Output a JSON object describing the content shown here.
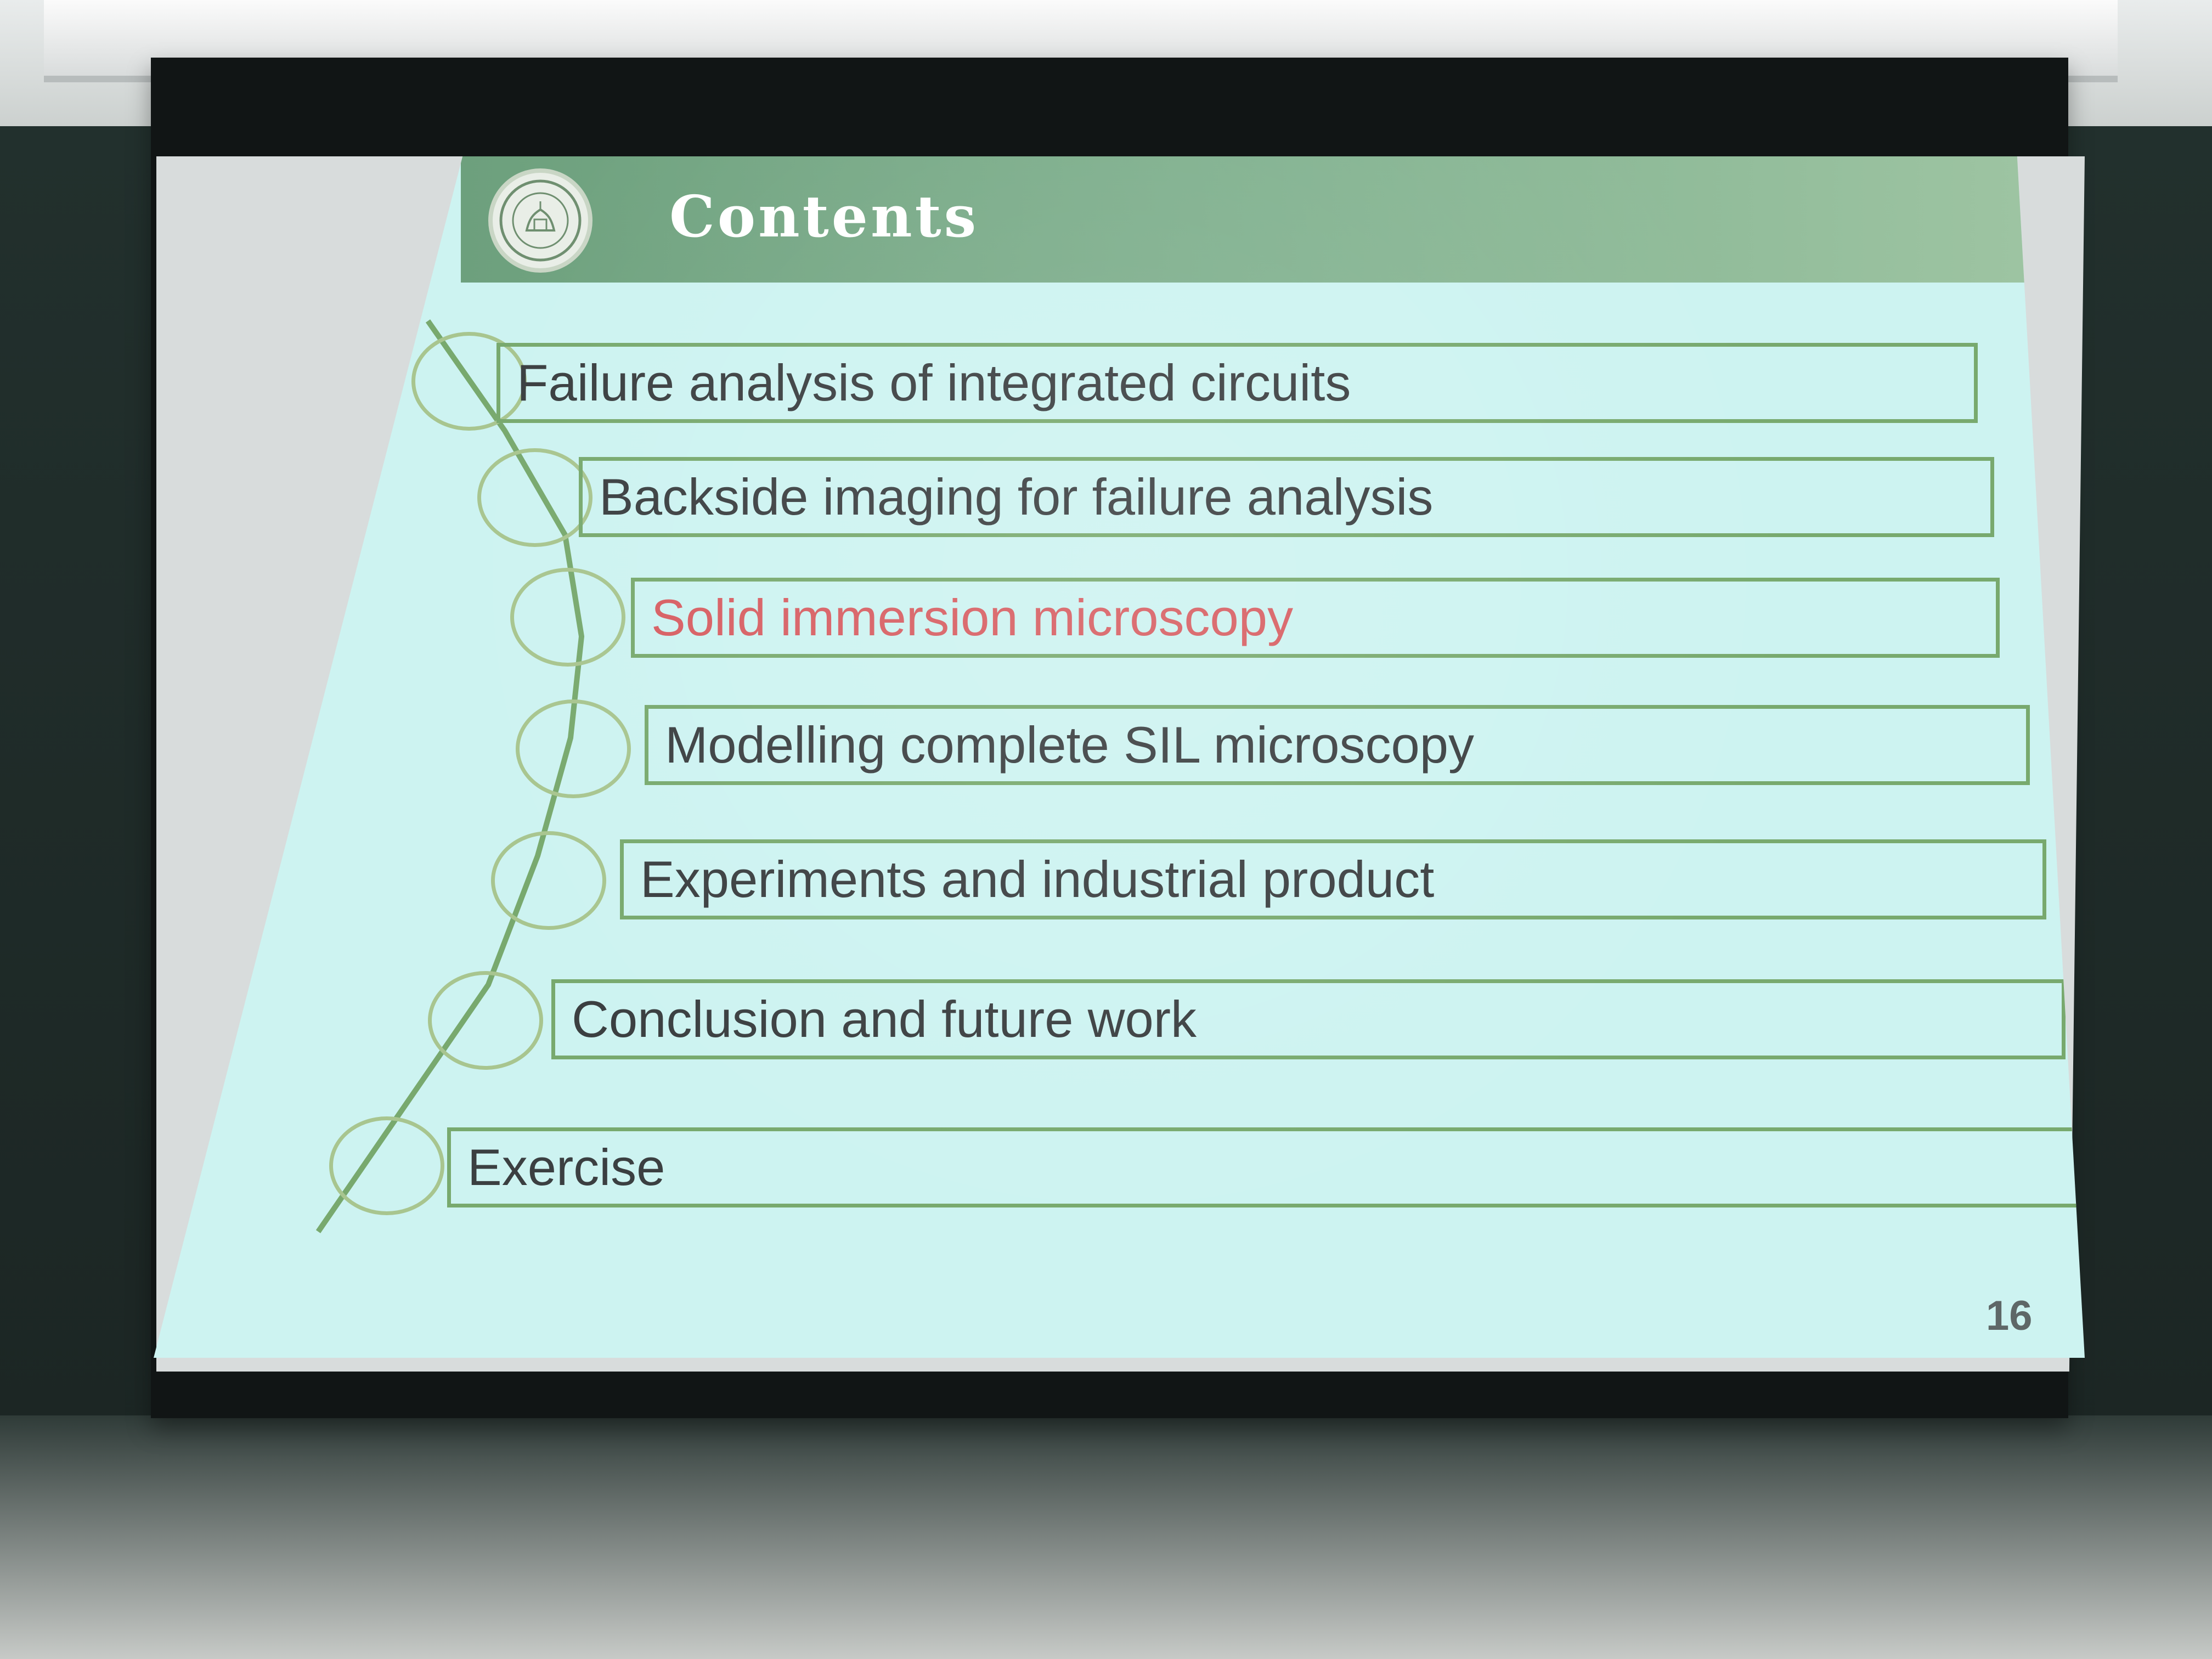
{
  "slide": {
    "title": "Contents",
    "items": [
      "Failure analysis of integrated circuits",
      "Backside imaging for failure analysis",
      "Solid immersion microscopy",
      "Modelling complete SIL microscopy",
      "Experiments and industrial product",
      "Conclusion and future work",
      "Exercise"
    ],
    "active_item": "Solid immersion microscopy",
    "page_number": "16"
  },
  "colors": {
    "header_green": "#7bac89",
    "box_green": "#78a96e",
    "active_red": "#d75e62",
    "text_dark": "#3b3f41"
  }
}
